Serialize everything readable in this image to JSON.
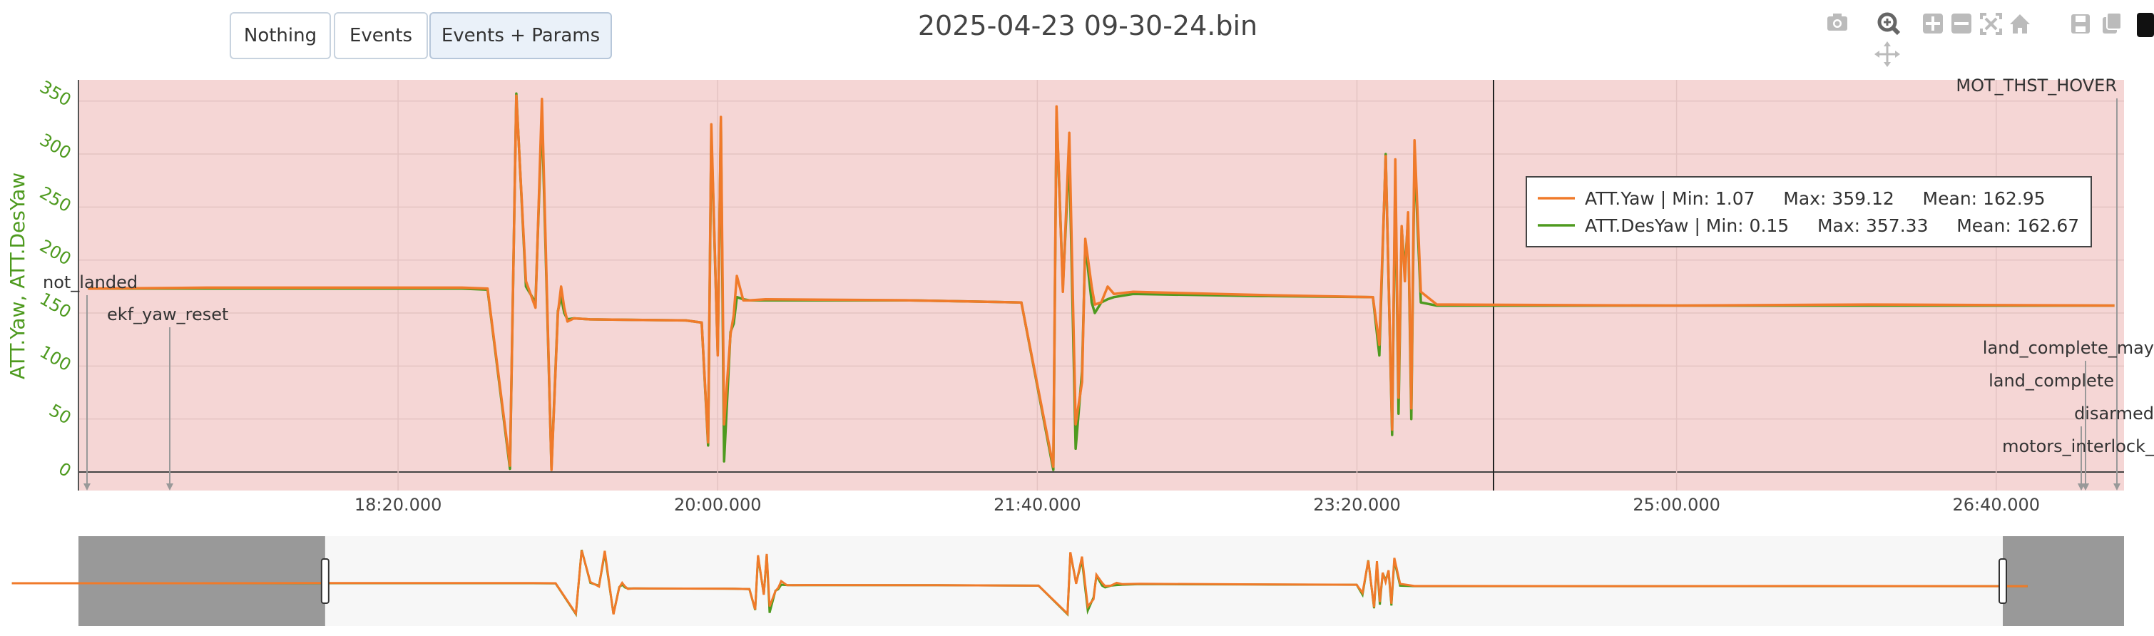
{
  "buttons": [
    {
      "label": "Nothing"
    },
    {
      "label": "Events"
    },
    {
      "label": "Events + Params"
    }
  ],
  "title": "2025-04-23 09-30-24.bin",
  "modebar": {
    "icons": [
      "camera-icon",
      "zoom-icon",
      "zoom-in-icon",
      "zoom-out-icon",
      "autoscale-icon",
      "home-icon",
      "save-icon",
      "copy-icon",
      "pan-icon"
    ]
  },
  "legend": {
    "entries": [
      {
        "text": "ATT.Yaw | Min: 1.07     Max: 359.12     Mean: 162.95",
        "color": "#f07a2a"
      },
      {
        "text": "ATT.DesYaw | Min: 0.15     Max: 357.33     Mean: 162.67",
        "color": "#4e9a1f"
      }
    ]
  },
  "chart_data": {
    "type": "line",
    "ylabel": "ATT.Yaw, ATT.DesYaw",
    "xlabel": "",
    "ylim": [
      0,
      370
    ],
    "yticks": [
      0,
      50,
      100,
      150,
      200,
      250,
      300,
      350
    ],
    "xlim": [
      1000,
      1640
    ],
    "xticks": [
      {
        "value": 1100,
        "label": "18:20.000"
      },
      {
        "value": 1200,
        "label": "20:00.000"
      },
      {
        "value": 1300,
        "label": "21:40.000"
      },
      {
        "value": 1400,
        "label": "23:20.000"
      },
      {
        "value": 1500,
        "label": "25:00.000"
      },
      {
        "value": 1600,
        "label": "26:40.000"
      }
    ],
    "grid": true,
    "legend_placement": "right",
    "background_band_color": "#f5d6d5",
    "series": [
      {
        "name": "ATT.Yaw",
        "color": "#f07a2a",
        "x": [
          1003,
          1040,
          1080,
          1120,
          1128,
          1135,
          1137,
          1140,
          1143,
          1145,
          1148,
          1150,
          1151,
          1152,
          1153,
          1155,
          1160,
          1190,
          1195,
          1197,
          1198,
          1200,
          1201,
          1202,
          1204,
          1205,
          1206,
          1208,
          1210,
          1215,
          1260,
          1295,
          1305,
          1306,
          1308,
          1310,
          1312,
          1314,
          1315,
          1317,
          1318,
          1320,
          1322,
          1324,
          1330,
          1370,
          1405,
          1407,
          1409,
          1411,
          1412,
          1413,
          1414,
          1415,
          1416,
          1417,
          1418,
          1420,
          1425,
          1500,
          1560,
          1637
        ],
        "y": [
          173,
          174,
          174,
          174,
          173,
          6,
          355,
          180,
          155,
          352,
          2,
          150,
          175,
          155,
          142,
          145,
          144,
          143,
          141,
          28,
          328,
          110,
          335,
          45,
          130,
          148,
          185,
          162,
          162,
          163,
          162,
          160,
          5,
          345,
          170,
          320,
          45,
          85,
          220,
          175,
          158,
          160,
          175,
          168,
          170,
          167,
          165,
          120,
          298,
          40,
          295,
          70,
          232,
          180,
          245,
          60,
          313,
          170,
          158,
          157,
          158,
          157
        ]
      },
      {
        "name": "ATT.DesYaw",
        "color": "#4e9a1f",
        "x": [
          1003,
          1040,
          1080,
          1120,
          1128,
          1135,
          1137,
          1140,
          1143,
          1145,
          1148,
          1150,
          1151,
          1152,
          1153,
          1155,
          1160,
          1190,
          1195,
          1197,
          1198,
          1200,
          1201,
          1202,
          1204,
          1205,
          1206,
          1208,
          1210,
          1215,
          1260,
          1295,
          1305,
          1306,
          1308,
          1310,
          1312,
          1314,
          1315,
          1317,
          1318,
          1320,
          1322,
          1324,
          1330,
          1370,
          1405,
          1407,
          1409,
          1411,
          1412,
          1413,
          1414,
          1415,
          1416,
          1417,
          1418,
          1420,
          1425,
          1500,
          1560,
          1637
        ],
        "y": [
          173,
          173,
          173,
          173,
          172,
          3,
          357,
          175,
          160,
          338,
          4,
          152,
          165,
          150,
          144,
          145,
          144,
          143,
          141,
          25,
          320,
          112,
          330,
          10,
          132,
          140,
          165,
          163,
          162,
          162,
          162,
          160,
          2,
          340,
          175,
          300,
          22,
          95,
          215,
          160,
          150,
          160,
          163,
          165,
          168,
          166,
          165,
          110,
          300,
          35,
          280,
          55,
          230,
          190,
          240,
          50,
          300,
          160,
          157,
          157,
          157,
          157
        ]
      }
    ],
    "annotations": [
      {
        "text": "MOT_THST_HOVER",
        "x": 1637
      },
      {
        "text": "not_landed",
        "x": 1003
      },
      {
        "text": "ekf_yaw_reset",
        "x": 1028
      },
      {
        "text": "land_complete_may",
        "x": 1628
      },
      {
        "text": "land_complete",
        "x": 1628
      },
      {
        "text": "disarmed",
        "x": 1628
      },
      {
        "text": "motors_interlock_",
        "x": 1628
      }
    ],
    "range_slider": {
      "x_range": [
        940,
        1640
      ],
      "selected": [
        1000,
        1640
      ]
    }
  }
}
